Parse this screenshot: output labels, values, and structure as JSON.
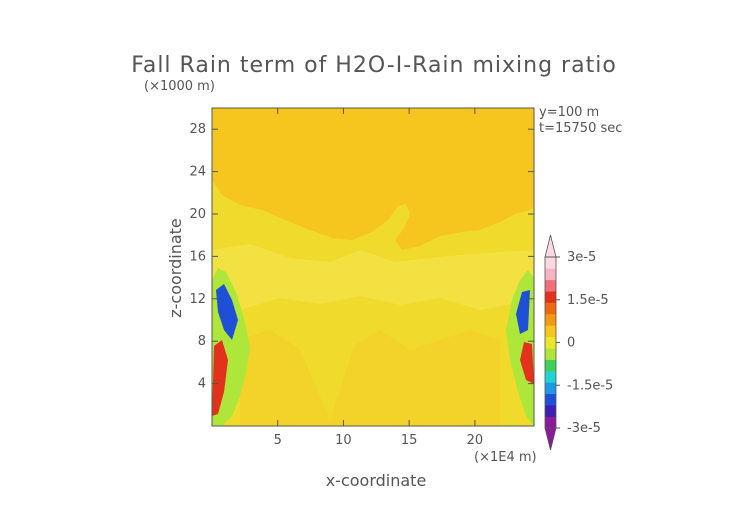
{
  "chart_data": {
    "type": "heatmap",
    "title": "Fall Rain term of H2O-I-Rain mixing ratio",
    "xlabel": "x-coordinate",
    "ylabel": "z-coordinate",
    "x_unit": "(×1E4 m)",
    "y_unit": "(×1000 m)",
    "annotations": [
      "y=100 m",
      "t=15750 sec"
    ],
    "xlim": [
      0,
      24.5
    ],
    "ylim": [
      0,
      30
    ],
    "x_ticks": [
      5,
      10,
      15,
      20
    ],
    "y_ticks": [
      4,
      8,
      12,
      16,
      20,
      24,
      28
    ],
    "field_description_values": {
      "background": 0,
      "upper_layer_top": 20,
      "mixed_band": [
        10,
        20
      ]
    },
    "colorbar": {
      "min": -3e-05,
      "max": 3e-05,
      "tick_labels": [
        "3e-5",
        "1.5e-5",
        "0",
        "-1.5e-5",
        "-3e-5"
      ],
      "tick_values": [
        3e-05,
        1.5e-05,
        0,
        -1.5e-05,
        -3e-05
      ],
      "colors": [
        "#8b1a9a",
        "#3c1fb0",
        "#1f4fd6",
        "#1e9be0",
        "#20d4d0",
        "#3fcf5a",
        "#aee63a",
        "#ece52a",
        "#f6c61e",
        "#f39a14",
        "#ee6a12",
        "#e2321c",
        "#f0707a",
        "#f7b3c0",
        "#fbd8e2"
      ]
    }
  }
}
